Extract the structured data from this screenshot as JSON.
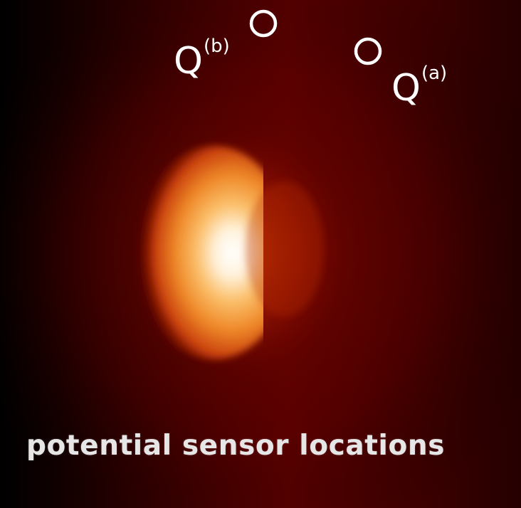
{
  "sensors": [
    {
      "id": "b",
      "label": "Q",
      "superscript": "(b)"
    },
    {
      "id": "a",
      "label": "Q",
      "superscript": "(a)"
    }
  ],
  "caption": "potential sensor locations",
  "colors": {
    "background_dark": "#000000",
    "background_red": "#4a0000",
    "hotspot_core": "#ffffff",
    "hotspot_mid": "#f59a2a",
    "hotspot_outer": "#b31d00",
    "marker_stroke": "#ffffff"
  }
}
